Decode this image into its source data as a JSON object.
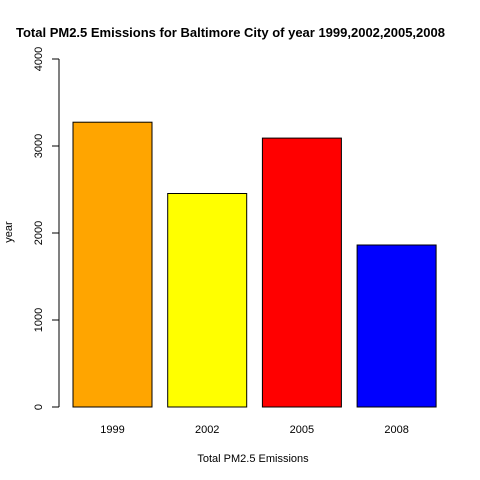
{
  "chart_data": {
    "type": "bar",
    "title": "Total PM2.5 Emissions for Baltimore City of year 1999,2002,2005,2008",
    "xlabel": "Total PM2.5 Emissions",
    "ylabel": "year",
    "categories": [
      "1999",
      "2002",
      "2005",
      "2008"
    ],
    "values": [
      3274,
      2454,
      3091,
      1862
    ],
    "colors": [
      "#FFA500",
      "#FFFF00",
      "#FF0000",
      "#0000FF"
    ],
    "ylim": [
      0,
      4000
    ],
    "yticks": [
      0,
      1000,
      2000,
      3000,
      4000
    ],
    "grid": false,
    "legend": "none"
  }
}
